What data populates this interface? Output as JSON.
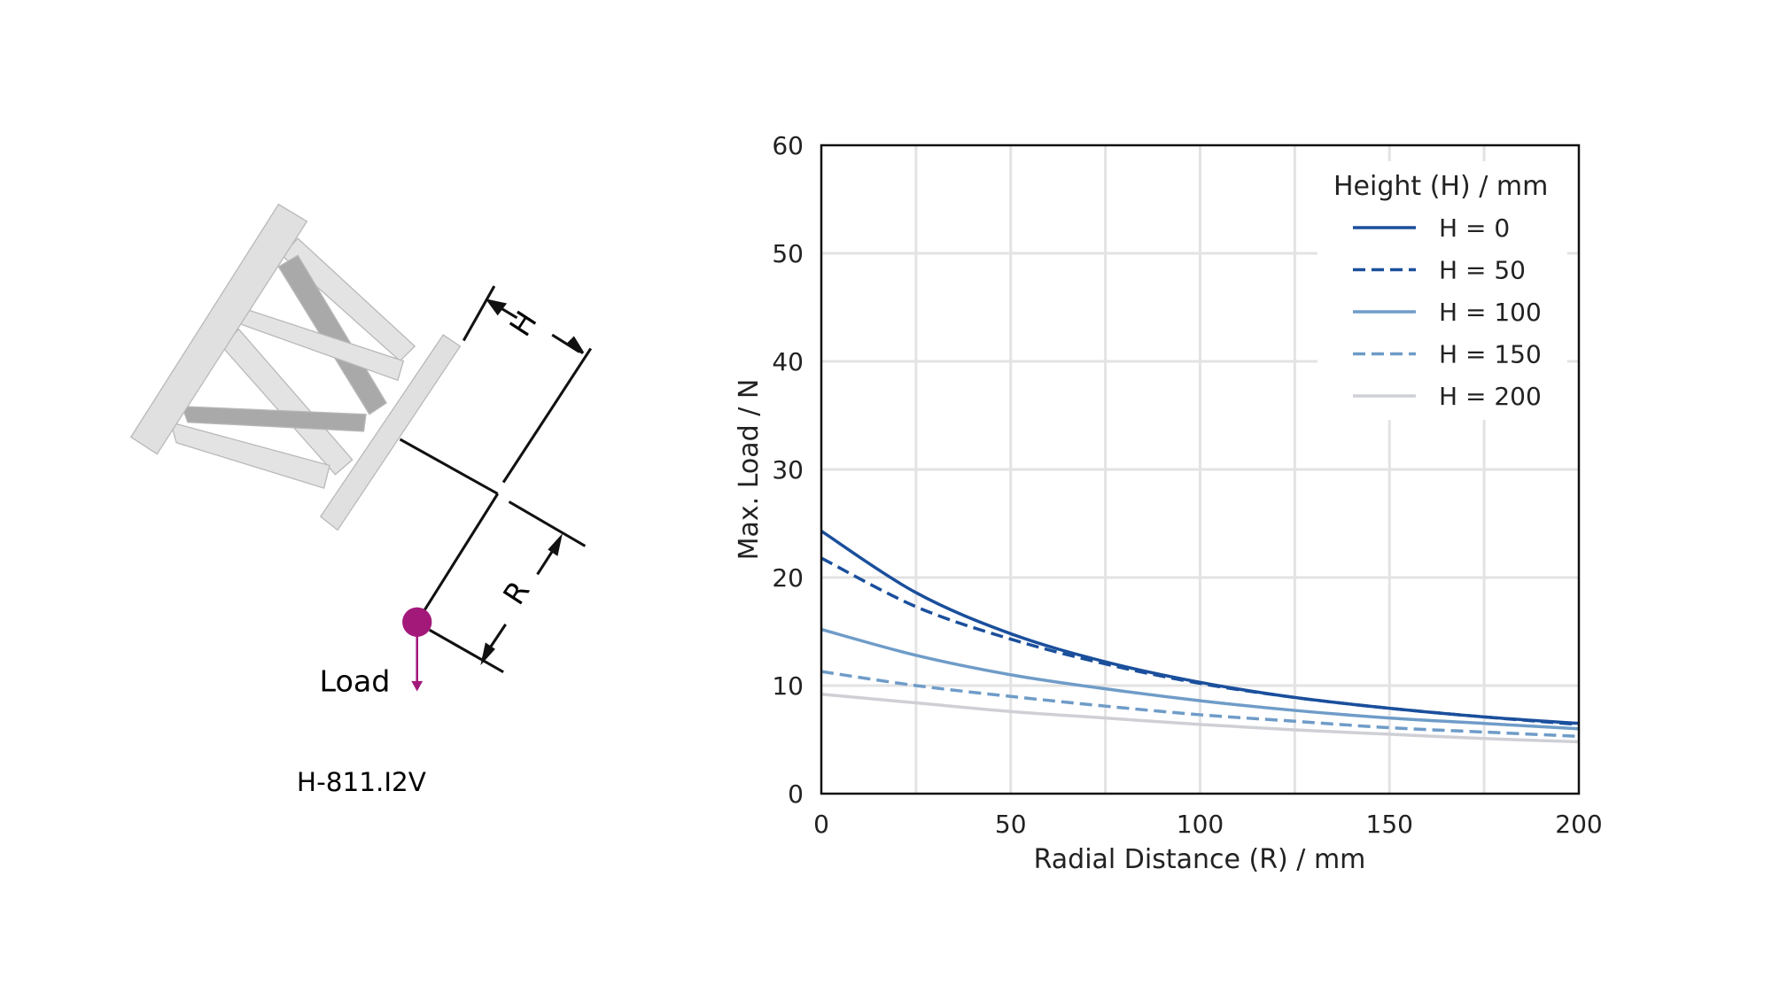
{
  "diagram": {
    "model_label": "H-811.I2V",
    "load_label": "Load",
    "dim_h_label": "H",
    "dim_r_label": "R",
    "load_color": "#a3197a"
  },
  "chart_data": {
    "type": "line",
    "title": "",
    "xlabel": "Radial Distance (R) / mm",
    "ylabel": "Max. Load / N",
    "xlim": [
      0,
      200
    ],
    "ylim": [
      0,
      60
    ],
    "xticks": [
      "0",
      "50",
      "100",
      "150",
      "200"
    ],
    "yticks": [
      "0",
      "10",
      "20",
      "30",
      "40",
      "50",
      "60"
    ],
    "grid": true,
    "legend": {
      "title": "Height (H) / mm",
      "placement": "top-right"
    },
    "x": [
      0,
      25,
      50,
      75,
      100,
      125,
      150,
      175,
      200
    ],
    "series": [
      {
        "name": "H = 0",
        "color": "#1a4f9c",
        "dash": false,
        "values": [
          24.3,
          18.6,
          14.8,
          12.2,
          10.3,
          8.9,
          7.9,
          7.1,
          6.5
        ]
      },
      {
        "name": "H = 50",
        "color": "#1a4f9c",
        "dash": true,
        "values": [
          21.8,
          17.3,
          14.3,
          12.0,
          10.2,
          8.9,
          7.9,
          7.1,
          6.4
        ]
      },
      {
        "name": "H = 100",
        "color": "#6f9cc8",
        "dash": false,
        "values": [
          15.2,
          12.8,
          11.0,
          9.7,
          8.6,
          7.7,
          7.0,
          6.5,
          6.0
        ]
      },
      {
        "name": "H = 150",
        "color": "#6f9cc8",
        "dash": true,
        "values": [
          11.3,
          10.0,
          9.0,
          8.1,
          7.3,
          6.7,
          6.1,
          5.7,
          5.3
        ]
      },
      {
        "name": "H = 200",
        "color": "#cfd0d6",
        "dash": false,
        "values": [
          9.2,
          8.4,
          7.6,
          7.0,
          6.4,
          5.9,
          5.5,
          5.1,
          4.8
        ]
      }
    ]
  }
}
